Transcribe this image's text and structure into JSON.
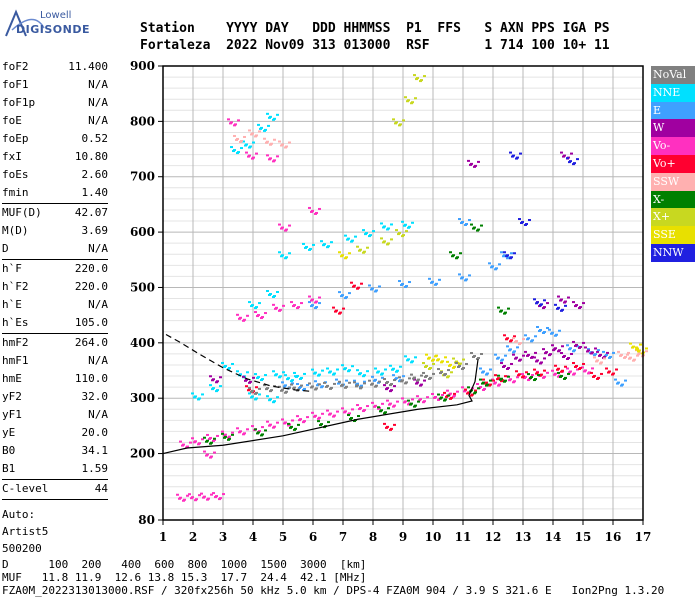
{
  "logo": {
    "line1": "Lowell",
    "line2": "DIGISONDE"
  },
  "header": {
    "row1": [
      "Station",
      "YYYY DAY",
      "DDD HHMMSS",
      "P1",
      "FFS",
      "S",
      "AXN",
      "PPS",
      "IGA",
      "PS"
    ],
    "row2": [
      "Fortaleza",
      "2022 Nov09",
      "313 013000",
      "RSF",
      "",
      "1",
      "714",
      "100",
      "10+",
      "11"
    ]
  },
  "params": [
    [
      {
        "k": "foF2",
        "v": "11.400"
      },
      {
        "k": "foF1",
        "v": "N/A"
      },
      {
        "k": "foF1p",
        "v": "N/A"
      },
      {
        "k": "foE",
        "v": "N/A"
      },
      {
        "k": "foEp",
        "v": "0.52"
      },
      {
        "k": "fxI",
        "v": "10.80"
      },
      {
        "k": "foEs",
        "v": "2.60"
      },
      {
        "k": "fmin",
        "v": "1.40"
      }
    ],
    [
      {
        "k": "MUF(D)",
        "v": "42.07"
      },
      {
        "k": "M(D)",
        "v": "3.69"
      },
      {
        "k": "D",
        "v": "N/A"
      }
    ],
    [
      {
        "k": "h`F",
        "v": "220.0"
      },
      {
        "k": "h`F2",
        "v": "220.0"
      },
      {
        "k": "h`E",
        "v": "N/A"
      },
      {
        "k": "h`Es",
        "v": "105.0"
      }
    ],
    [
      {
        "k": "hmF2",
        "v": "264.0"
      },
      {
        "k": "hmF1",
        "v": "N/A"
      },
      {
        "k": "hmE",
        "v": "110.0"
      },
      {
        "k": "yF2",
        "v": "32.0"
      },
      {
        "k": "yF1",
        "v": "N/A"
      },
      {
        "k": "yE",
        "v": "20.0"
      },
      {
        "k": "B0",
        "v": "34.1"
      },
      {
        "k": "B1",
        "v": "1.59"
      }
    ],
    [
      {
        "k": "C-level",
        "v": "44"
      }
    ]
  ],
  "auto": [
    "Auto:",
    "Artist5",
    "500200"
  ],
  "legend": [
    {
      "label": "NoVal",
      "color": "#808080"
    },
    {
      "label": "NNE",
      "color": "#00e0ff"
    },
    {
      "label": "E",
      "color": "#3fa0ff"
    },
    {
      "label": "W",
      "color": "#a000a0"
    },
    {
      "label": "Vo-",
      "color": "#ff30c0"
    },
    {
      "label": "Vo+",
      "color": "#ff0030"
    },
    {
      "label": "SSW",
      "color": "#ffb0b0"
    },
    {
      "label": "X-",
      "color": "#008000"
    },
    {
      "label": "X+",
      "color": "#c8d820"
    },
    {
      "label": "SSE",
      "color": "#e8e000"
    },
    {
      "label": "NNW",
      "color": "#2020e0"
    }
  ],
  "footer": {
    "d_row": [
      "D",
      "100",
      "200",
      "400",
      "600",
      "800",
      "1000",
      "1500",
      "3000",
      "[km]"
    ],
    "muf_row": [
      "MUF",
      "11.8",
      "11.9",
      "12.6",
      "13.8",
      "15.3",
      "17.7",
      "24.4",
      "42.1",
      "[MHz]"
    ],
    "file_line": "FZA0M_2022313013000.RSF / 320fx256h 50 kHz 5.0 km / DPS-4 FZA0M 904 / 3.9 S 321.6 E   Ion2Png 1.3.20"
  },
  "chart_data": {
    "type": "scatter",
    "title": "",
    "xlabel": "",
    "ylabel": "",
    "xlim": [
      1,
      17
    ],
    "ylim": [
      80,
      900
    ],
    "x_ticks": [
      1,
      2,
      3,
      4,
      5,
      6,
      7,
      8,
      9,
      10,
      11,
      12,
      13,
      14,
      15,
      16,
      17
    ],
    "y_ticks": [
      80,
      200,
      300,
      400,
      500,
      600,
      700,
      800,
      900
    ],
    "y_minor_ticks": [
      100,
      120,
      140,
      160,
      180,
      220,
      240,
      260,
      280,
      320,
      340,
      360,
      380,
      420,
      440,
      460,
      480,
      520,
      540,
      560,
      580,
      620,
      640,
      660,
      680,
      720,
      740,
      760,
      780,
      820,
      840,
      860,
      880
    ],
    "grid": true,
    "legend_position": "right",
    "traces": [
      {
        "name": "NNE",
        "points": [
          [
            3.1,
            360
          ],
          [
            3.6,
            345
          ],
          [
            4.2,
            340
          ],
          [
            4.8,
            345
          ],
          [
            5.2,
            338
          ],
          [
            5.5,
            342
          ],
          [
            6.1,
            348
          ],
          [
            6.6,
            350
          ],
          [
            7.1,
            356
          ],
          [
            7.6,
            347
          ],
          [
            8.2,
            350
          ],
          [
            8.7,
            355
          ],
          [
            9.2,
            372
          ],
          [
            4.0,
            305
          ],
          [
            4.6,
            300
          ],
          [
            2.1,
            305
          ],
          [
            2.7,
            320
          ],
          [
            5.0,
            560
          ],
          [
            5.8,
            575
          ],
          [
            6.4,
            580
          ],
          [
            7.2,
            590
          ],
          [
            7.8,
            600
          ],
          [
            8.4,
            612
          ],
          [
            9.1,
            615
          ],
          [
            4.0,
            470
          ],
          [
            4.6,
            490
          ],
          [
            3.4,
            750
          ],
          [
            3.8,
            760
          ],
          [
            4.3,
            790
          ],
          [
            4.6,
            810
          ]
        ]
      },
      {
        "name": "E",
        "points": [
          [
            5.1,
            325
          ],
          [
            5.6,
            322
          ],
          [
            6.2,
            327
          ],
          [
            6.9,
            330
          ],
          [
            7.5,
            328
          ],
          [
            8.1,
            335
          ],
          [
            8.8,
            338
          ],
          [
            11.7,
            350
          ],
          [
            12.2,
            375
          ],
          [
            12.6,
            390
          ],
          [
            13.2,
            410
          ],
          [
            13.6,
            425
          ],
          [
            14.0,
            420
          ],
          [
            14.6,
            392
          ],
          [
            15.3,
            385
          ],
          [
            15.8,
            380
          ],
          [
            16.2,
            330
          ],
          [
            6.0,
            470
          ],
          [
            7.0,
            488
          ],
          [
            8.0,
            500
          ],
          [
            9.0,
            508
          ],
          [
            10.0,
            512
          ],
          [
            11.0,
            520
          ],
          [
            12.0,
            540
          ],
          [
            12.4,
            560
          ],
          [
            11.0,
            620
          ]
        ]
      },
      {
        "name": "W",
        "points": [
          [
            12.4,
            360
          ],
          [
            12.8,
            375
          ],
          [
            13.2,
            380
          ],
          [
            13.5,
            370
          ],
          [
            13.8,
            385
          ],
          [
            14.1,
            392
          ],
          [
            14.4,
            378
          ],
          [
            14.8,
            398
          ],
          [
            15.2,
            388
          ],
          [
            15.6,
            380
          ],
          [
            13.6,
            470
          ],
          [
            14.3,
            480
          ],
          [
            14.8,
            470
          ],
          [
            9.5,
            330
          ],
          [
            8.5,
            320
          ],
          [
            3.8,
            335
          ],
          [
            2.7,
            336
          ],
          [
            14.4,
            740
          ],
          [
            11.3,
            725
          ]
        ]
      },
      {
        "name": "Vo-",
        "points": [
          [
            1.7,
            218
          ],
          [
            2.1,
            224
          ],
          [
            2.6,
            230
          ],
          [
            3.1,
            236
          ],
          [
            3.6,
            242
          ],
          [
            4.1,
            246
          ],
          [
            4.6,
            254
          ],
          [
            5.1,
            258
          ],
          [
            5.6,
            264
          ],
          [
            6.1,
            270
          ],
          [
            6.6,
            274
          ],
          [
            7.1,
            278
          ],
          [
            7.6,
            284
          ],
          [
            8.1,
            288
          ],
          [
            8.6,
            292
          ],
          [
            9.1,
            296
          ],
          [
            9.6,
            300
          ],
          [
            10.1,
            304
          ],
          [
            10.6,
            310
          ],
          [
            11.1,
            316
          ],
          [
            11.6,
            322
          ],
          [
            12.1,
            330
          ],
          [
            12.6,
            336
          ],
          [
            13.1,
            340
          ],
          [
            13.6,
            344
          ],
          [
            14.1,
            346
          ],
          [
            14.6,
            350
          ],
          [
            15.1,
            352
          ],
          [
            2.5,
            200
          ],
          [
            1.6,
            122
          ],
          [
            2.0,
            123
          ],
          [
            2.4,
            124
          ],
          [
            2.8,
            125
          ],
          [
            3.6,
            447
          ],
          [
            4.2,
            452
          ],
          [
            4.8,
            465
          ],
          [
            5.4,
            470
          ],
          [
            6.0,
            480
          ],
          [
            3.3,
            800
          ],
          [
            3.9,
            740
          ],
          [
            4.6,
            735
          ],
          [
            5.0,
            610
          ],
          [
            6.0,
            640
          ]
        ]
      },
      {
        "name": "Vo+",
        "points": [
          [
            11.8,
            330
          ],
          [
            12.2,
            338
          ],
          [
            12.9,
            345
          ],
          [
            13.5,
            348
          ],
          [
            14.2,
            355
          ],
          [
            14.8,
            360
          ],
          [
            15.4,
            342
          ],
          [
            15.9,
            350
          ],
          [
            10.5,
            306
          ],
          [
            11.2,
            312
          ],
          [
            12.5,
            410
          ],
          [
            8.5,
            250
          ],
          [
            3.9,
            318
          ],
          [
            6.8,
            460
          ],
          [
            7.4,
            505
          ]
        ]
      },
      {
        "name": "SSW",
        "points": [
          [
            16.3,
            380
          ],
          [
            16.6,
            375
          ],
          [
            16.9,
            383
          ],
          [
            3.5,
            770
          ],
          [
            4.0,
            780
          ],
          [
            4.5,
            765
          ],
          [
            5.0,
            760
          ],
          [
            15.5,
            370
          ],
          [
            12.8,
            405
          ]
        ]
      },
      {
        "name": "X-",
        "points": [
          [
            2.5,
            225
          ],
          [
            3.1,
            232
          ],
          [
            4.2,
            240
          ],
          [
            5.3,
            250
          ],
          [
            6.3,
            255
          ],
          [
            7.3,
            266
          ],
          [
            8.3,
            280
          ],
          [
            9.3,
            292
          ],
          [
            10.3,
            303
          ],
          [
            11.3,
            316
          ],
          [
            11.7,
            330
          ],
          [
            12.3,
            337
          ],
          [
            13.3,
            340
          ],
          [
            14.3,
            342
          ],
          [
            10.7,
            560
          ],
          [
            11.4,
            610
          ],
          [
            12.3,
            460
          ]
        ]
      },
      {
        "name": "X+",
        "points": [
          [
            9.8,
            360
          ],
          [
            10.4,
            345
          ],
          [
            10.8,
            368
          ],
          [
            7.6,
            570
          ],
          [
            8.4,
            585
          ],
          [
            8.9,
            600
          ],
          [
            9.5,
            880
          ],
          [
            9.2,
            840
          ],
          [
            8.8,
            800
          ]
        ]
      },
      {
        "name": "SSE",
        "points": [
          [
            9.9,
            375
          ],
          [
            10.2,
            372
          ],
          [
            10.6,
            362
          ],
          [
            16.7,
            395
          ],
          [
            16.9,
            388
          ],
          [
            7.0,
            560
          ]
        ]
      },
      {
        "name": "NNW",
        "points": [
          [
            13.5,
            475
          ],
          [
            14.2,
            465
          ],
          [
            12.5,
            560
          ],
          [
            13.0,
            620
          ],
          [
            14.6,
            730
          ],
          [
            12.7,
            740
          ]
        ]
      },
      {
        "name": "NoVal",
        "points": [
          [
            4.0,
            315
          ],
          [
            4.5,
            320
          ],
          [
            5.0,
            317
          ],
          [
            5.4,
            321
          ],
          [
            6.0,
            323
          ],
          [
            6.5,
            324
          ],
          [
            7.0,
            326
          ],
          [
            7.5,
            325
          ],
          [
            8.0,
            328
          ],
          [
            8.5,
            331
          ],
          [
            9.0,
            334
          ],
          [
            9.4,
            339
          ],
          [
            9.8,
            342
          ],
          [
            10.3,
            349
          ],
          [
            10.9,
            360
          ],
          [
            11.4,
            378
          ]
        ]
      }
    ],
    "fitted_trace": {
      "name": "profile",
      "points": [
        [
          1.0,
          200
        ],
        [
          1.8,
          210
        ],
        [
          3.0,
          215
        ],
        [
          5.0,
          232
        ],
        [
          7.5,
          262
        ],
        [
          9.5,
          280
        ],
        [
          10.8,
          288
        ],
        [
          11.3,
          295
        ],
        [
          11.2,
          305
        ],
        [
          11.4,
          330
        ],
        [
          11.5,
          370
        ]
      ]
    },
    "dashed_curve": {
      "points": [
        [
          1.1,
          415
        ],
        [
          1.6,
          400
        ],
        [
          2.2,
          380
        ],
        [
          3.0,
          355
        ],
        [
          3.8,
          335
        ],
        [
          4.6,
          322
        ],
        [
          5.4,
          315
        ],
        [
          6.0,
          312
        ]
      ]
    }
  }
}
